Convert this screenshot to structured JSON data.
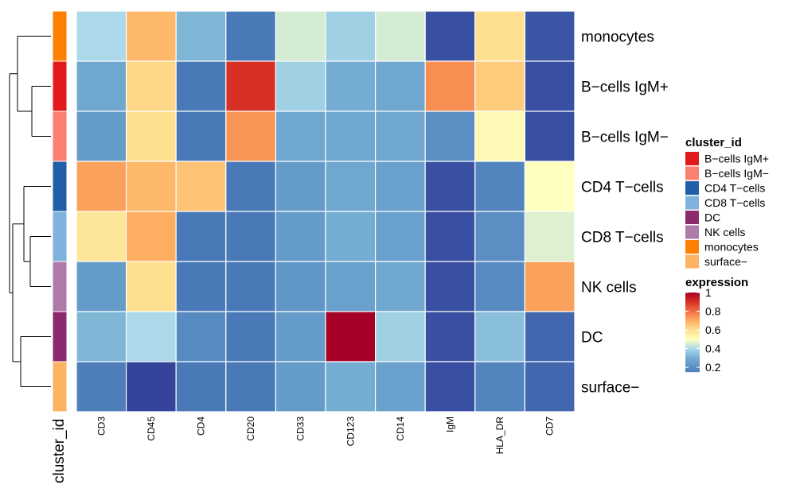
{
  "chart_data": {
    "type": "heatmap",
    "rows": [
      "monocytes",
      "B−cells IgM+",
      "B−cells IgM−",
      "CD4 T−cells",
      "CD8 T−cells",
      "NK cells",
      "DC",
      "surface−"
    ],
    "columns": [
      "CD3",
      "CD45",
      "CD4",
      "CD20",
      "CD33",
      "CD123",
      "CD14",
      "IgM",
      "HLA_DR",
      "CD7"
    ],
    "values": [
      [
        0.4,
        0.68,
        0.32,
        0.12,
        0.45,
        0.38,
        0.45,
        0.04,
        0.6,
        0.05
      ],
      [
        0.28,
        0.62,
        0.12,
        0.9,
        0.38,
        0.3,
        0.28,
        0.75,
        0.64,
        0.04
      ],
      [
        0.24,
        0.6,
        0.12,
        0.74,
        0.28,
        0.28,
        0.28,
        0.2,
        0.52,
        0.04
      ],
      [
        0.72,
        0.68,
        0.66,
        0.12,
        0.24,
        0.28,
        0.26,
        0.04,
        0.16,
        0.5
      ],
      [
        0.58,
        0.7,
        0.12,
        0.12,
        0.24,
        0.3,
        0.26,
        0.04,
        0.2,
        0.46
      ],
      [
        0.24,
        0.6,
        0.12,
        0.12,
        0.22,
        0.26,
        0.28,
        0.04,
        0.18,
        0.72
      ],
      [
        0.32,
        0.4,
        0.18,
        0.12,
        0.24,
        1.0,
        0.38,
        0.04,
        0.34,
        0.08
      ],
      [
        0.14,
        0.02,
        0.12,
        0.12,
        0.24,
        0.3,
        0.26,
        0.04,
        0.16,
        0.08
      ]
    ],
    "color_scale": {
      "domain": [
        0.0,
        0.1,
        0.2,
        0.3,
        0.4,
        0.5,
        0.6,
        0.7,
        0.8,
        0.9,
        1.0
      ],
      "colors": [
        "#313695",
        "#4575b4",
        "#5b8fc4",
        "#74add1",
        "#abd9e9",
        "#ffffbf",
        "#fee090",
        "#fdae61",
        "#f46d43",
        "#d73027",
        "#a50026"
      ]
    },
    "annotation": {
      "label": "cluster_id",
      "colors": [
        "#FF7F00",
        "#E31A1C",
        "#FB8072",
        "#1F5FA8",
        "#7FB2DC",
        "#B07AA8",
        "#8B2A6C",
        "#FDB462"
      ]
    },
    "legend_cluster": {
      "title": "cluster_id",
      "entries": [
        {
          "label": "B−cells IgM+",
          "color": "#E31A1C"
        },
        {
          "label": "B−cells IgM−",
          "color": "#FB8072"
        },
        {
          "label": "CD4 T−cells",
          "color": "#1F5FA8"
        },
        {
          "label": "CD8 T−cells",
          "color": "#7FB2DC"
        },
        {
          "label": "DC",
          "color": "#8B2A6C"
        },
        {
          "label": "NK cells",
          "color": "#B07AA8"
        },
        {
          "label": "monocytes",
          "color": "#FF7F00"
        },
        {
          "label": "surface−",
          "color": "#FDB462"
        }
      ]
    },
    "legend_expression": {
      "title": "expression",
      "ticks": [
        1,
        0.8,
        0.6,
        0.4,
        0.2
      ]
    }
  }
}
